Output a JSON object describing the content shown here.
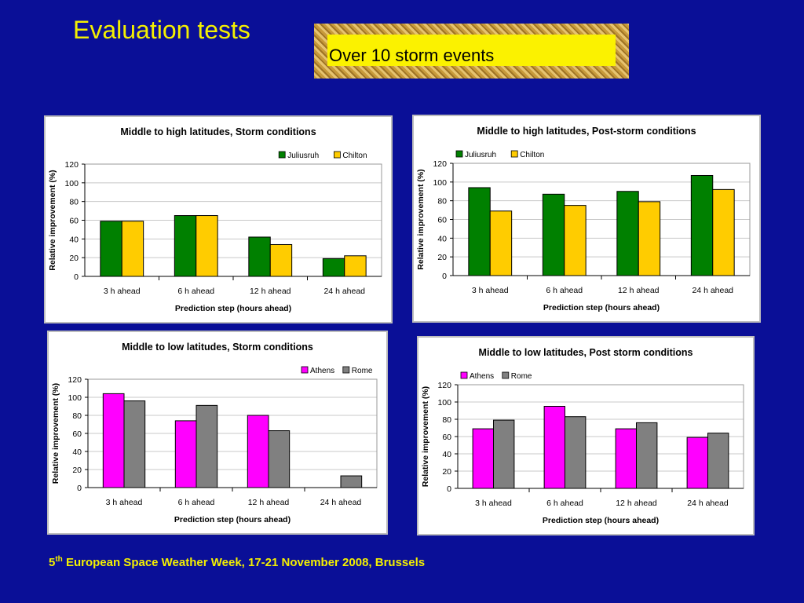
{
  "slide": {
    "title": "Evaluation tests",
    "banner": "Over 10 storm events",
    "footer_prefix": "5",
    "footer_sup": "th",
    "footer_rest": " European Space Weather Week, 17-21 November 2008, Brussels"
  },
  "colors": {
    "background": "#0a0f97",
    "title": "#f4f000",
    "juliusruh": "#008000",
    "chilton": "#ffcc00",
    "athens": "#ff00ff",
    "rome": "#808080"
  },
  "chart_data": [
    {
      "type": "bar",
      "title": "Middle to high latitudes, Storm conditions",
      "xlabel": "Prediction step (hours ahead)",
      "ylabel": "Relative improvement (%)",
      "ylim": [
        0,
        120
      ],
      "yticks": [
        0,
        20,
        40,
        60,
        80,
        100,
        120
      ],
      "categories": [
        "3 h ahead",
        "6 h ahead",
        "12 h ahead",
        "24 h ahead"
      ],
      "series": [
        {
          "name": "Juliusruh",
          "color": "#008000",
          "values": [
            59,
            65,
            42,
            19
          ]
        },
        {
          "name": "Chilton",
          "color": "#ffcc00",
          "values": [
            59,
            65,
            34,
            22
          ]
        }
      ],
      "legend": "top-right",
      "grid": true
    },
    {
      "type": "bar",
      "title": "Middle to high latitudes, Post-storm conditions",
      "xlabel": "Prediction step (hours ahead)",
      "ylabel": "Relative improvement (%)",
      "ylim": [
        0,
        120
      ],
      "yticks": [
        0,
        20,
        40,
        60,
        80,
        100,
        120
      ],
      "categories": [
        "3 h ahead",
        "6 h ahead",
        "12 h ahead",
        "24 h ahead"
      ],
      "series": [
        {
          "name": "Juliusruh",
          "color": "#008000",
          "values": [
            94,
            87,
            90,
            107
          ]
        },
        {
          "name": "Chilton",
          "color": "#ffcc00",
          "values": [
            69,
            75,
            79,
            92
          ]
        }
      ],
      "legend": "top-left",
      "grid": true
    },
    {
      "type": "bar",
      "title": "Middle to low latitudes, Storm conditions",
      "xlabel": "Prediction step (hours ahead)",
      "ylabel": "Relative improvement (%)",
      "ylim": [
        0,
        120
      ],
      "yticks": [
        0,
        20,
        40,
        60,
        80,
        100,
        120
      ],
      "categories": [
        "3 h ahead",
        "6 h ahead",
        "12 h ahead",
        "24 h ahead"
      ],
      "series": [
        {
          "name": "Athens",
          "color": "#ff00ff",
          "values": [
            104,
            74,
            80,
            0
          ]
        },
        {
          "name": "Rome",
          "color": "#808080",
          "values": [
            96,
            91,
            63,
            13
          ]
        }
      ],
      "legend": "top-right",
      "grid": true
    },
    {
      "type": "bar",
      "title": "Middle to low latitudes, Post storm conditions",
      "xlabel": "Prediction step (hours ahead)",
      "ylabel": "Relative improvement (%)",
      "ylim": [
        0,
        120
      ],
      "yticks": [
        0,
        20,
        40,
        60,
        80,
        100,
        120
      ],
      "categories": [
        "3 h ahead",
        "6 h ahead",
        "12 h ahead",
        "24 h ahead"
      ],
      "series": [
        {
          "name": "Athens",
          "color": "#ff00ff",
          "values": [
            69,
            95,
            69,
            59
          ]
        },
        {
          "name": "Rome",
          "color": "#808080",
          "values": [
            79,
            83,
            76,
            64
          ]
        }
      ],
      "legend": "top-left",
      "grid": true
    }
  ]
}
